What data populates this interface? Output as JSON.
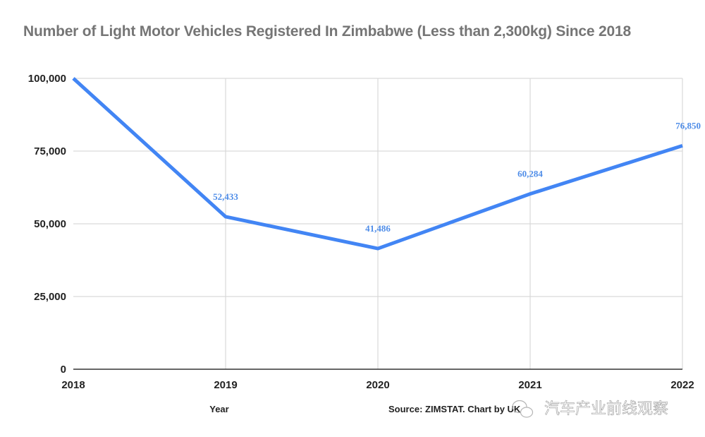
{
  "chart_data": {
    "type": "line",
    "title": "Number of Light Motor Vehicles Registered In Zimbabwe (Less than 2,300kg) Since 2018",
    "xlabel": "Year",
    "ylabel": "",
    "categories": [
      "2018",
      "2019",
      "2020",
      "2021",
      "2022"
    ],
    "series": [
      {
        "name": "Light Motor Vehicles",
        "values": [
          100000,
          52433,
          41486,
          60284,
          76850
        ],
        "data_labels": [
          "",
          "52,433",
          "41,486",
          "60,284",
          "76,850"
        ],
        "color": "#4285f4"
      }
    ],
    "ylim": [
      0,
      100000
    ],
    "yticks": [
      0,
      25000,
      50000,
      75000,
      100000
    ],
    "ytick_labels": [
      "0",
      "25,000",
      "50,000",
      "75,000",
      "100,000"
    ],
    "grid": true,
    "legend": "none",
    "source": "Source: ZIMSTAT. Chart by UK",
    "watermark": "汽车产业前线观察"
  },
  "colors": {
    "line": "#4285f4",
    "label": "#4f8de8",
    "grid": "#d9d9d9",
    "axis": "#333333",
    "title": "#757575"
  }
}
